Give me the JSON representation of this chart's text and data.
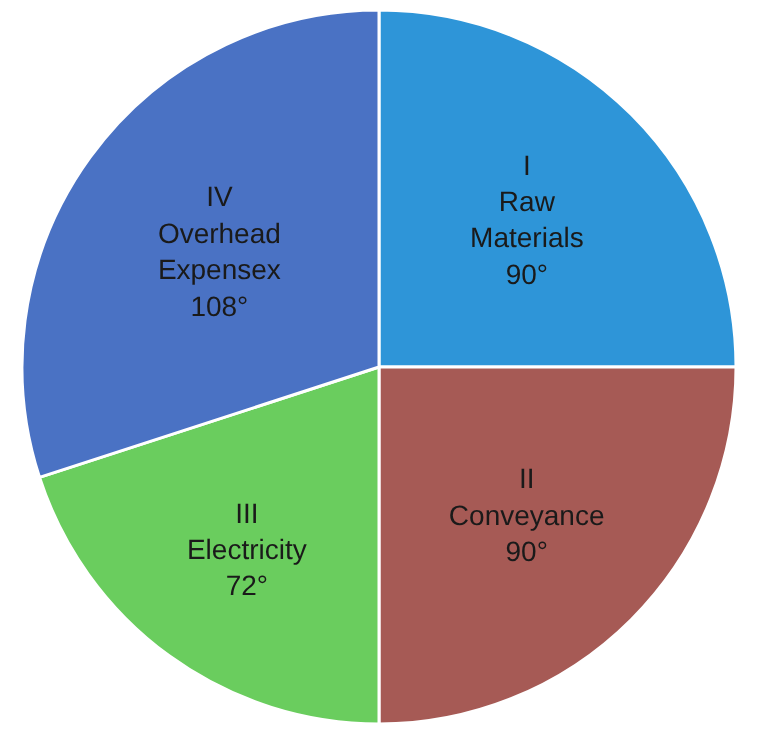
{
  "chart_data": {
    "type": "pie",
    "categories": [
      "I\nRaw\nMaterials",
      "II\nConveyance",
      "III\nElectricity",
      "IV\nOverhead\nExpensex"
    ],
    "values": [
      90,
      90,
      72,
      108
    ],
    "value_labels": [
      "90°",
      "90°",
      "72°",
      "108°"
    ],
    "colors": [
      "#2e95d8",
      "#a65a55",
      "#6acd5e",
      "#4a72c4"
    ],
    "legend": false
  }
}
